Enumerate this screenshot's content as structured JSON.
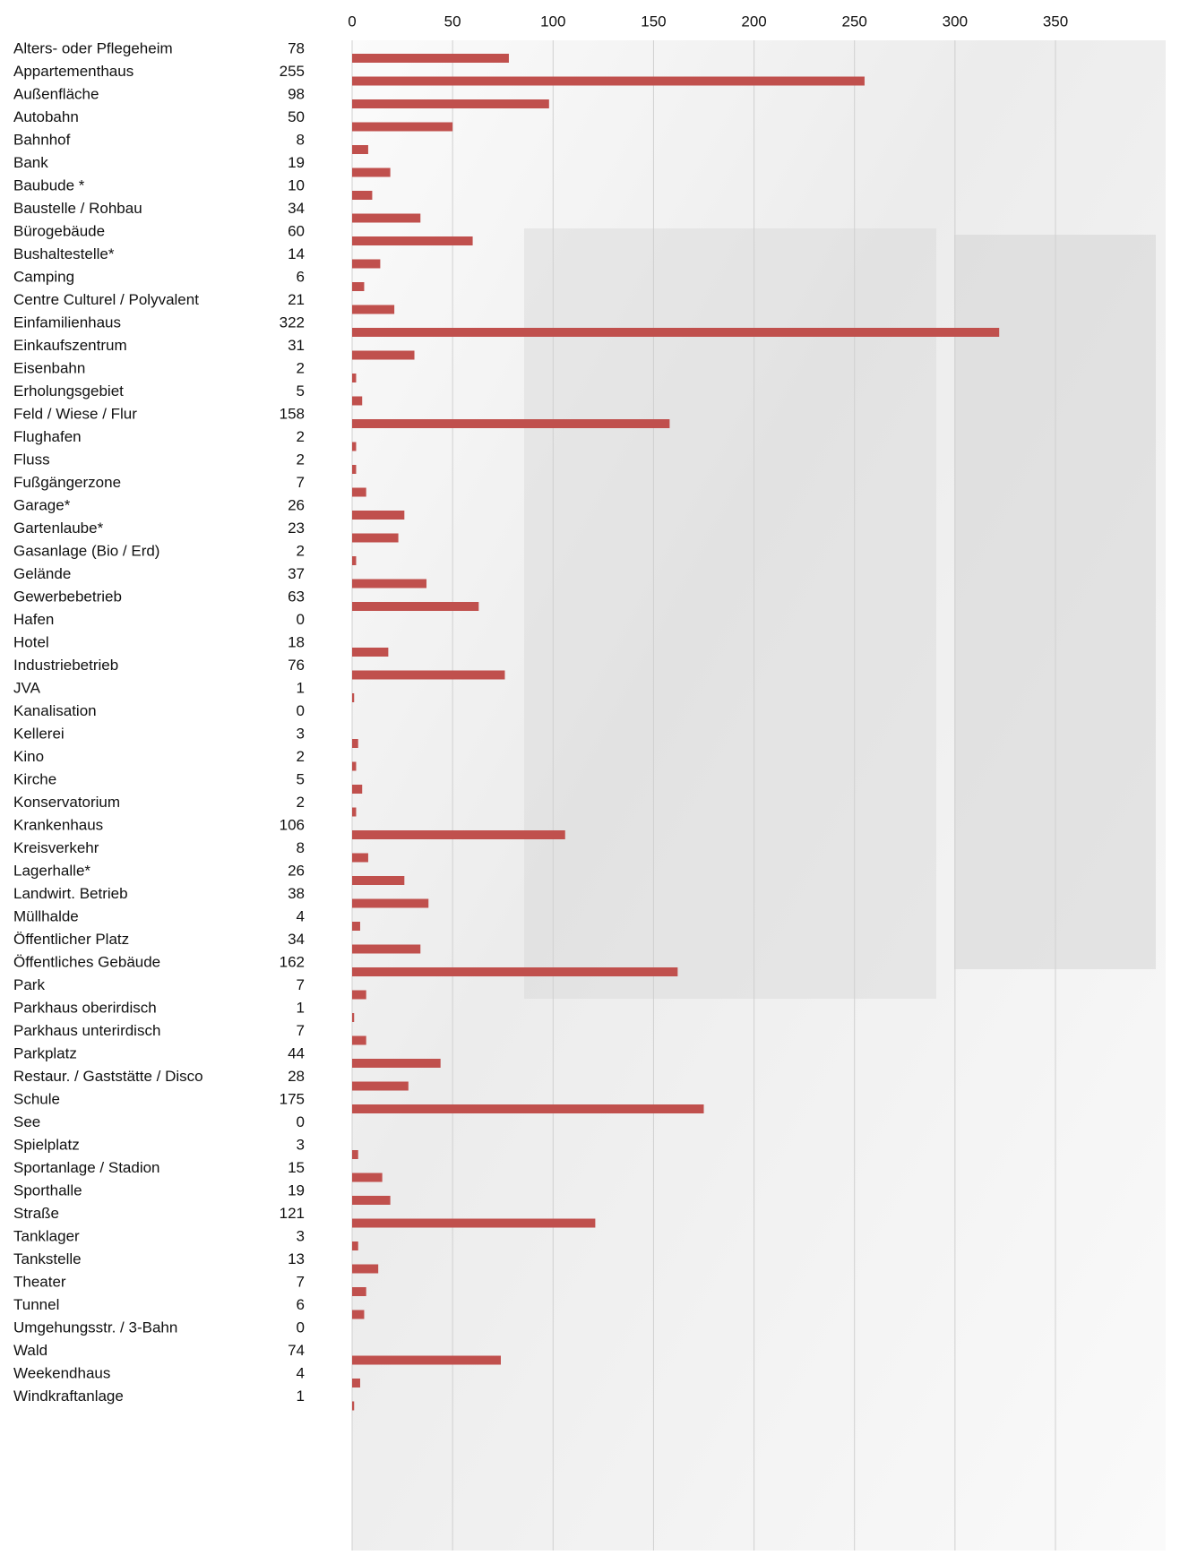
{
  "chart_data": {
    "type": "bar",
    "orientation": "horizontal",
    "color": "#c0504d",
    "grid": true,
    "categories": [
      "Alters-  oder Pflegeheim",
      "Appartementhaus",
      "Außenfläche",
      "Autobahn",
      "Bahnhof",
      "Bank",
      "Baubude *",
      "Baustelle / Rohbau",
      "Bürogebäude",
      "Bushaltestelle*",
      "Camping",
      "Centre Culturel / Polyvalent",
      "Einfamilienhaus",
      "Einkaufszentrum",
      "Eisenbahn",
      "Erholungsgebiet",
      "Feld / Wiese / Flur",
      "Flughafen",
      "Fluss",
      "Fußgängerzone",
      "Garage*",
      "Gartenlaube*",
      "Gasanlage (Bio / Erd)",
      "Gelände",
      "Gewerbebetrieb",
      "Hafen",
      "Hotel",
      "Industriebetrieb",
      "JVA",
      "Kanalisation",
      "Kellerei",
      "Kino",
      "Kirche",
      "Konservatorium",
      "Krankenhaus",
      "Kreisverkehr",
      "Lagerhalle*",
      "Landwirt. Betrieb",
      "Müllhalde",
      "Öffentlicher Platz",
      "Öffentliches Gebäude",
      "Park",
      "Parkhaus oberirdisch",
      "Parkhaus unterirdisch",
      "Parkplatz",
      "Restaur. / Gaststätte / Disco",
      "Schule",
      "See",
      "Spielplatz",
      "Sportanlage / Stadion",
      "Sporthalle",
      "Straße",
      "Tanklager",
      "Tankstelle",
      "Theater",
      "Tunnel",
      "Umgehungsstr. / 3-Bahn",
      "Wald",
      "Weekendhaus",
      "Windkraftanlage"
    ],
    "values": [
      78,
      255,
      98,
      50,
      8,
      19,
      10,
      34,
      60,
      14,
      6,
      21,
      322,
      31,
      2,
      5,
      158,
      2,
      2,
      7,
      26,
      23,
      2,
      37,
      63,
      0,
      18,
      76,
      1,
      0,
      3,
      2,
      5,
      2,
      106,
      8,
      26,
      38,
      4,
      34,
      162,
      7,
      1,
      7,
      44,
      28,
      175,
      0,
      3,
      15,
      19,
      121,
      3,
      13,
      7,
      6,
      0,
      74,
      4,
      1
    ],
    "xlim": [
      0,
      350
    ],
    "xticks": [
      0,
      50,
      100,
      150,
      200,
      250,
      300,
      350
    ]
  }
}
